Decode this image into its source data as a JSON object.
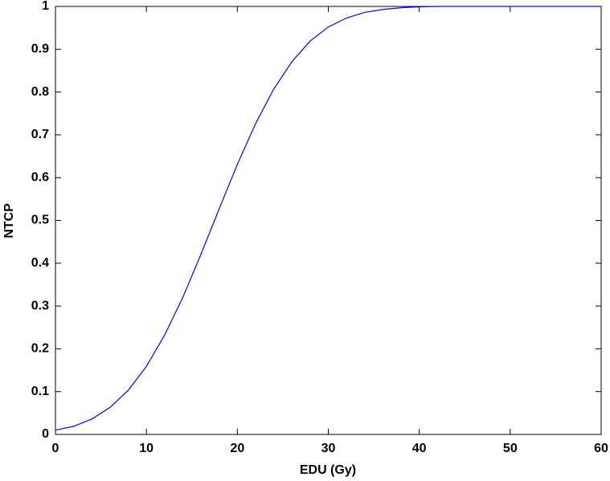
{
  "chart_data": {
    "type": "line",
    "x_label": "EDU (Gy)",
    "y_label": "NTCP",
    "x": [
      0,
      2,
      4,
      6,
      8,
      10,
      12,
      14,
      16,
      18,
      20,
      22,
      24,
      26,
      28,
      30,
      32,
      34,
      36,
      38,
      40,
      42,
      44,
      46,
      48,
      50,
      52,
      54,
      56,
      58,
      60
    ],
    "series": [
      {
        "color": "#0000ff",
        "values": [
          0.01,
          0.019,
          0.036,
          0.063,
          0.103,
          0.159,
          0.232,
          0.32,
          0.421,
          0.527,
          0.631,
          0.726,
          0.807,
          0.871,
          0.919,
          0.952,
          0.973,
          0.986,
          0.993,
          0.997,
          0.999,
          1,
          1,
          1,
          1,
          1,
          1,
          1,
          1,
          1,
          1
        ]
      }
    ],
    "xlim": [
      0,
      60
    ],
    "xticks": [
      0,
      10,
      20,
      30,
      40,
      50,
      60
    ],
    "ylim": [
      0,
      1
    ],
    "yticks": [
      0,
      0.1,
      0.2,
      0.3,
      0.4,
      0.5,
      0.6,
      0.7,
      0.8,
      0.9,
      1
    ],
    "grid": false
  }
}
